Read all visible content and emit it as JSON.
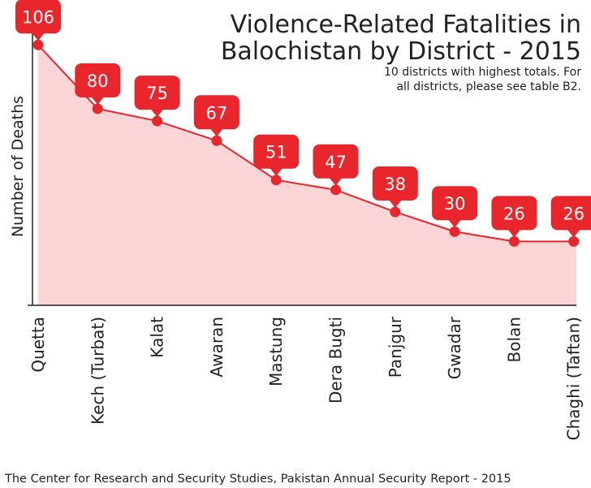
{
  "chart_data": {
    "type": "area",
    "title_lines": [
      "Violence-Related Fatalities in",
      "Balochistan by District - 2015"
    ],
    "subtitle_lines": [
      "10 districts with highest totals. For",
      "all districts, please see table B2."
    ],
    "ylabel": "Number of Deaths",
    "xlabel": "",
    "ylim": [
      0,
      117
    ],
    "grid": false,
    "categories": [
      "Quetta",
      "Kech (Turbat)",
      "Kalat",
      "Awaran",
      "Mastung",
      "Dera Bugti",
      "Panjgur",
      "Gwadar",
      "Bolan",
      "Chaghi (Taftan)"
    ],
    "series": [
      {
        "values": [
          106,
          80,
          75,
          67,
          51,
          47,
          38,
          30,
          26,
          26
        ]
      }
    ],
    "colors": {
      "line": "#e8262b",
      "fill": "#fbd5d6",
      "badge": "#e8262b",
      "axis": "#222222"
    },
    "source": "The Center for Research and Security Studies, Pakistan Annual Security Report - 2015"
  }
}
